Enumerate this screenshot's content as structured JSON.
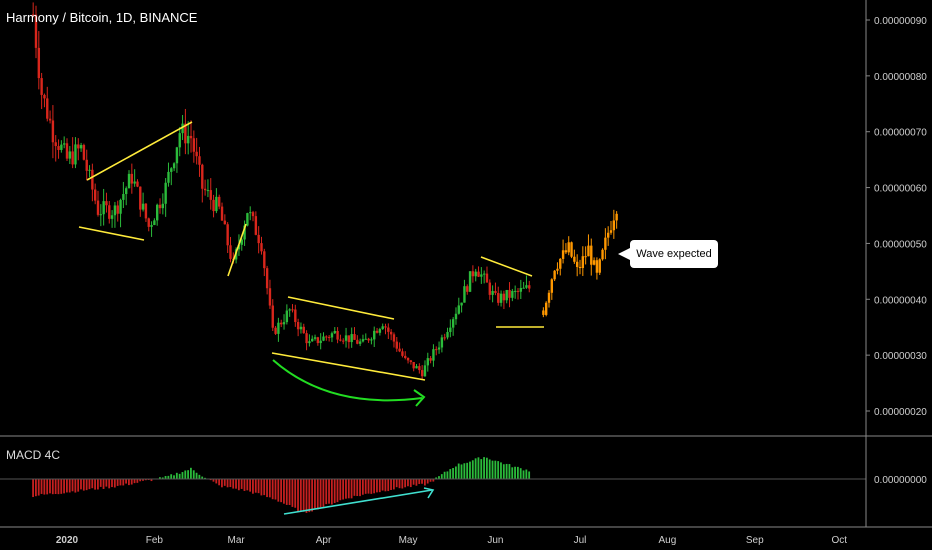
{
  "header": {
    "title": "Harmony / Bitcoin, 1D, BINANCE"
  },
  "annotation": {
    "text": "Wave expected"
  },
  "macd": {
    "title": "MACD 4C",
    "axis_label": "0.00000000"
  },
  "colors": {
    "up": "#2bbb3b",
    "down": "#d9261c",
    "projection": "#ff9800",
    "trendline": "#ffeb3b",
    "arc": "#22dd22",
    "divergence": "#40e0d0",
    "macd_pos": "#2bbb3b",
    "macd_neg": "#c62020"
  },
  "chart_data": [
    {
      "type": "candlestick",
      "title": "Harmony / Bitcoin, 1D, BINANCE",
      "ylim": [
        1.7e-07,
        9.7e-07
      ],
      "y_ticks": [
        "0.00000090",
        "0.00000080",
        "0.00000070",
        "0.00000060",
        "0.00000050",
        "0.00000040",
        "0.00000030",
        "0.00000020"
      ],
      "x_ticks": [
        "2020",
        "Feb",
        "Mar",
        "Apr",
        "May",
        "Jun",
        "Jul",
        "Aug",
        "Sep",
        "Oct"
      ],
      "series": [
        {
          "name": "price",
          "approx_close": [
            {
              "x": "2019-12-20",
              "y": 9.1e-07
            },
            {
              "x": "2019-12-23",
              "y": 7.7e-07
            },
            {
              "x": "2019-12-27",
              "y": 7e-07
            },
            {
              "x": "2020-01-01",
              "y": 6.5e-07
            },
            {
              "x": "2020-01-06",
              "y": 6.7e-07
            },
            {
              "x": "2020-01-12",
              "y": 5.6e-07
            },
            {
              "x": "2020-01-18",
              "y": 5.6e-07
            },
            {
              "x": "2020-01-24",
              "y": 6.2e-07
            },
            {
              "x": "2020-01-30",
              "y": 5.3e-07
            },
            {
              "x": "2020-02-05",
              "y": 6e-07
            },
            {
              "x": "2020-02-10",
              "y": 7e-07
            },
            {
              "x": "2020-02-14",
              "y": 6.9e-07
            },
            {
              "x": "2020-02-18",
              "y": 6e-07
            },
            {
              "x": "2020-02-24",
              "y": 5.6e-07
            },
            {
              "x": "2020-02-29",
              "y": 4.6e-07
            },
            {
              "x": "2020-03-05",
              "y": 5.6e-07
            },
            {
              "x": "2020-03-10",
              "y": 5e-07
            },
            {
              "x": "2020-03-14",
              "y": 3.4e-07
            },
            {
              "x": "2020-03-20",
              "y": 3.8e-07
            },
            {
              "x": "2020-03-27",
              "y": 3.2e-07
            },
            {
              "x": "2020-04-05",
              "y": 3.4e-07
            },
            {
              "x": "2020-04-15",
              "y": 3.2e-07
            },
            {
              "x": "2020-04-22",
              "y": 3.6e-07
            },
            {
              "x": "2020-04-30",
              "y": 2.9e-07
            },
            {
              "x": "2020-05-06",
              "y": 2.7e-07
            },
            {
              "x": "2020-05-12",
              "y": 3.2e-07
            },
            {
              "x": "2020-05-18",
              "y": 3.8e-07
            },
            {
              "x": "2020-05-25",
              "y": 4.6e-07
            },
            {
              "x": "2020-06-01",
              "y": 4e-07
            },
            {
              "x": "2020-06-08",
              "y": 4.1e-07
            },
            {
              "x": "2020-06-13",
              "y": 4.2e-07
            }
          ]
        },
        {
          "name": "projection",
          "approx_close": [
            {
              "x": "2020-06-18",
              "y": 3.8e-07
            },
            {
              "x": "2020-06-22",
              "y": 4.6e-07
            },
            {
              "x": "2020-06-27",
              "y": 4.9e-07
            },
            {
              "x": "2020-06-30",
              "y": 4.5e-07
            },
            {
              "x": "2020-07-04",
              "y": 4.9e-07
            },
            {
              "x": "2020-07-07",
              "y": 4.4e-07
            },
            {
              "x": "2020-07-11",
              "y": 5.2e-07
            },
            {
              "x": "2020-07-14",
              "y": 5.7e-07
            }
          ]
        }
      ]
    },
    {
      "type": "bar",
      "title": "MACD 4C",
      "y_ticks": [
        "0.00000000"
      ],
      "series": [
        {
          "name": "histogram",
          "approx_values": [
            {
              "x": "2019-12-20",
              "y": -0.5
            },
            {
              "x": "2020-01-05",
              "y": -0.35
            },
            {
              "x": "2020-01-20",
              "y": -0.2
            },
            {
              "x": "2020-02-05",
              "y": 0.05
            },
            {
              "x": "2020-02-14",
              "y": 0.3
            },
            {
              "x": "2020-02-24",
              "y": -0.2
            },
            {
              "x": "2020-03-05",
              "y": -0.35
            },
            {
              "x": "2020-03-15",
              "y": -0.6
            },
            {
              "x": "2020-03-25",
              "y": -1.0
            },
            {
              "x": "2020-04-10",
              "y": -0.55
            },
            {
              "x": "2020-04-25",
              "y": -0.3
            },
            {
              "x": "2020-05-08",
              "y": -0.15
            },
            {
              "x": "2020-05-18",
              "y": 0.4
            },
            {
              "x": "2020-05-28",
              "y": 0.65
            },
            {
              "x": "2020-06-08",
              "y": 0.35
            },
            {
              "x": "2020-06-13",
              "y": 0.25
            }
          ]
        }
      ]
    }
  ]
}
